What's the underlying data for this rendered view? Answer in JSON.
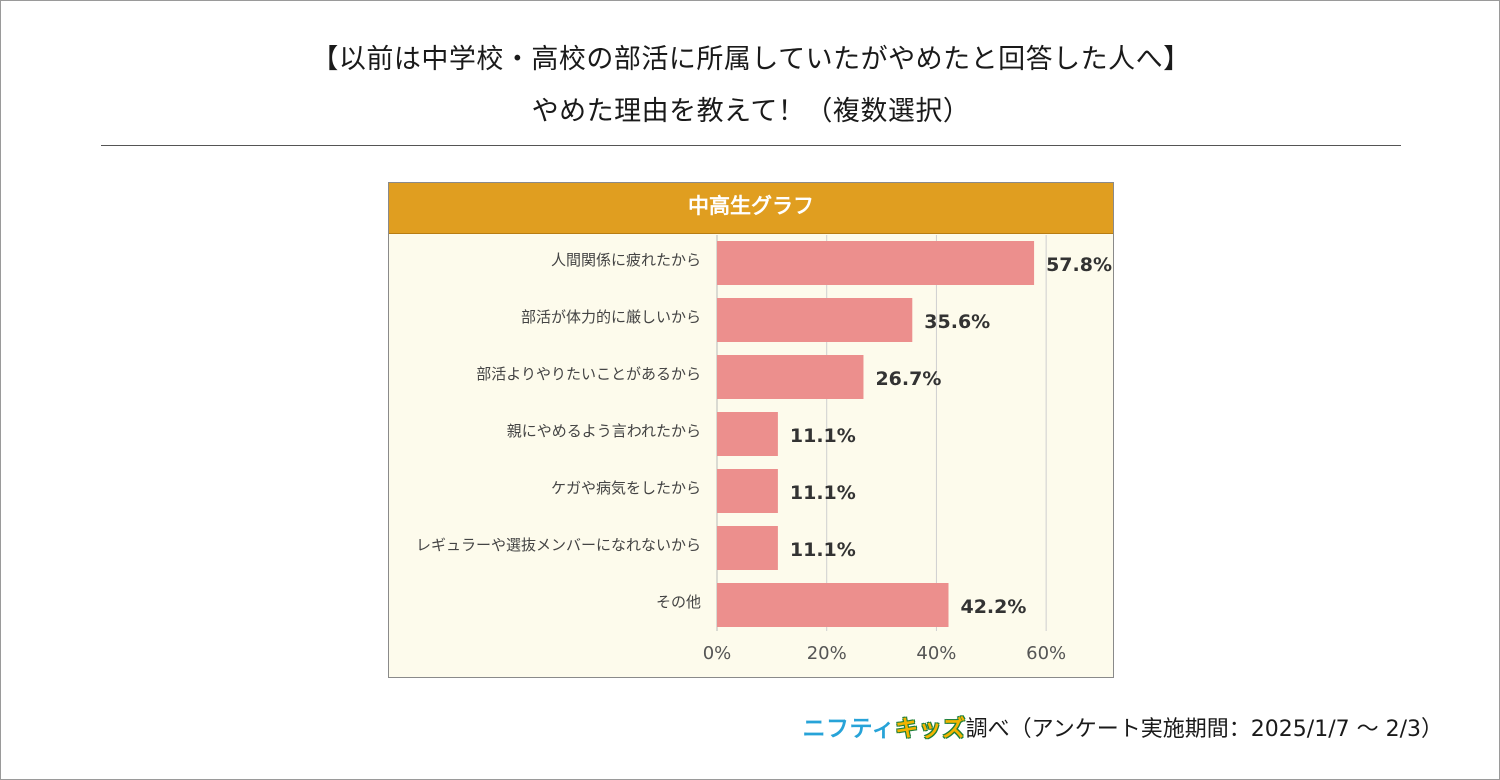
{
  "title": {
    "line1": "【以前は中学校・高校の部活に所属していたがやめたと回答した人へ】",
    "line2": "やめた理由を教えて！（複数選択）"
  },
  "chart_data": {
    "type": "bar",
    "orientation": "horizontal",
    "title": "中高生グラフ",
    "categories": [
      "人間関係に疲れたから",
      "部活が体力的に厳しいから",
      "部活よりやりたいことがあるから",
      "親にやめるよう言われたから",
      "ケガや病気をしたから",
      "レギュラーや選抜メンバーになれないから",
      "その他"
    ],
    "values": [
      57.8,
      35.6,
      26.7,
      11.1,
      11.1,
      11.1,
      42.2
    ],
    "value_labels": [
      "57.8%",
      "35.6%",
      "26.7%",
      "11.1%",
      "11.1%",
      "11.1%",
      "42.2%"
    ],
    "xlim": [
      0,
      70
    ],
    "xticks": [
      0,
      20,
      40,
      60
    ],
    "xtick_labels": [
      "0%",
      "20%",
      "40%",
      "60%"
    ],
    "xlabel": "",
    "ylabel": "",
    "grid": true,
    "colors": {
      "bar": "#ec8f8d",
      "header": "#e09e20",
      "plot_bg": "#fdfbec",
      "grid": "#cfcfcf"
    }
  },
  "footer": {
    "logo_part1": "ニフティ",
    "logo_part2": "キッズ",
    "text": "調べ（アンケート実施期間：2025/1/7 ～ 2/3）"
  }
}
